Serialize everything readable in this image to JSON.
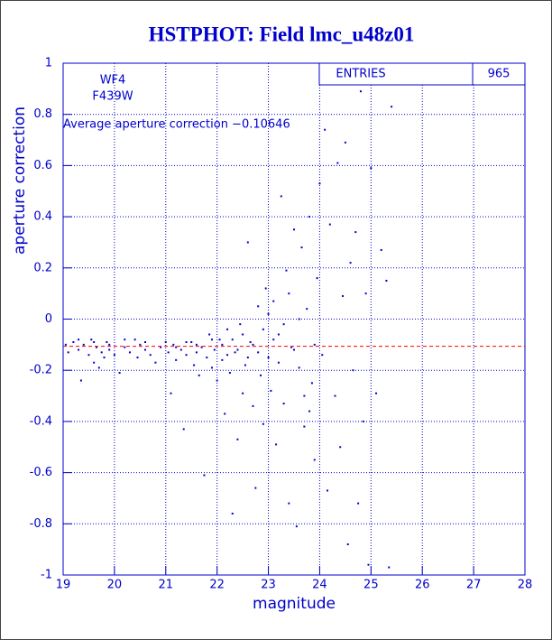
{
  "chart_data": {
    "type": "scatter",
    "title": "HSTPHOT: Field lmc_u48z01",
    "x_label": "magnitude",
    "y_label": "aperture correction",
    "annotations": [
      "WF4",
      "F439W",
      "Average aperture correction −0.10646"
    ],
    "stats_label": "ENTRIES",
    "stats_value": 965,
    "reference_line": -0.10646,
    "reference_color": "#ff0000",
    "color": "#0000cc",
    "grid": true,
    "xlim": [
      19,
      28
    ],
    "xticks": [
      19,
      20,
      21,
      22,
      23,
      24,
      25,
      26,
      27,
      28
    ],
    "ylim": [
      -1,
      1
    ],
    "yticks": [
      -1,
      -0.8,
      -0.6,
      -0.4,
      -0.2,
      0,
      0.2,
      0.4,
      0.6,
      0.8,
      1
    ],
    "x": [
      19.05,
      19.1,
      19.2,
      19.3,
      19.35,
      19.4,
      19.5,
      19.55,
      19.6,
      19.65,
      19.7,
      19.75,
      19.8,
      19.85,
      19.9,
      20.0,
      20.1,
      20.2,
      20.3,
      20.4,
      20.45,
      20.5,
      20.6,
      20.7,
      20.8,
      20.9,
      21.0,
      21.05,
      21.1,
      21.15,
      21.2,
      21.3,
      21.35,
      21.4,
      21.5,
      21.55,
      21.6,
      21.65,
      21.7,
      21.75,
      21.8,
      21.85,
      21.9,
      21.95,
      22.0,
      22.05,
      22.1,
      22.15,
      22.2,
      22.25,
      22.3,
      22.35,
      22.4,
      22.45,
      22.5,
      22.55,
      22.6,
      22.65,
      22.7,
      22.75,
      22.8,
      22.85,
      22.9,
      22.95,
      23.0,
      23.05,
      23.1,
      23.15,
      23.2,
      23.25,
      23.3,
      23.35,
      23.4,
      23.45,
      23.5,
      23.55,
      23.6,
      23.65,
      23.7,
      23.75,
      23.8,
      23.85,
      23.9,
      23.95,
      24.0,
      24.05,
      24.1,
      24.15,
      24.2,
      24.3,
      24.35,
      24.4,
      24.45,
      24.5,
      24.55,
      24.6,
      24.65,
      24.7,
      24.75,
      24.8,
      24.85,
      24.9,
      24.95,
      25.0,
      25.1,
      25.2,
      25.3,
      25.35,
      25.4,
      22.1,
      22.2,
      22.3,
      22.4,
      22.5,
      22.6,
      22.7,
      22.8,
      22.9,
      23.0,
      23.1,
      23.2,
      23.3,
      23.4,
      23.5,
      23.6,
      23.7,
      23.8,
      23.9,
      21.9,
      21.6,
      21.4,
      21.2,
      20.6,
      20.2,
      19.9,
      19.6,
      19.3
    ],
    "y": [
      -0.1,
      -0.13,
      -0.09,
      -0.12,
      -0.24,
      -0.1,
      -0.14,
      -0.08,
      -0.17,
      -0.11,
      -0.19,
      -0.13,
      -0.15,
      -0.09,
      -0.12,
      -0.14,
      -0.21,
      -0.11,
      -0.13,
      -0.08,
      -0.15,
      -0.1,
      -0.12,
      -0.14,
      -0.17,
      -0.11,
      -0.09,
      -0.13,
      -0.29,
      -0.1,
      -0.16,
      -0.12,
      -0.43,
      -0.14,
      -0.09,
      -0.18,
      -0.13,
      -0.22,
      -0.11,
      -0.61,
      -0.15,
      -0.06,
      -0.19,
      -0.12,
      -0.24,
      -0.08,
      -0.16,
      -0.37,
      -0.04,
      -0.21,
      -0.76,
      -0.13,
      -0.47,
      -0.02,
      -0.29,
      -0.18,
      0.3,
      -0.09,
      -0.34,
      -0.66,
      0.05,
      -0.22,
      -0.41,
      0.12,
      -0.15,
      -0.28,
      0.07,
      -0.49,
      -0.06,
      0.48,
      -0.33,
      0.19,
      -0.72,
      -0.11,
      0.35,
      -0.81,
      -0.19,
      0.28,
      -0.42,
      0.04,
      0.4,
      -0.25,
      -0.55,
      0.16,
      0.53,
      -0.14,
      0.74,
      -0.67,
      0.37,
      -0.3,
      0.61,
      -0.5,
      0.09,
      0.69,
      -0.88,
      0.22,
      -0.2,
      0.34,
      -0.72,
      0.89,
      -0.4,
      0.1,
      -0.96,
      0.59,
      -0.29,
      0.27,
      0.15,
      -0.97,
      0.83,
      -0.1,
      -0.14,
      -0.08,
      -0.12,
      -0.06,
      -0.15,
      -0.1,
      -0.13,
      -0.04,
      0.02,
      -0.08,
      -0.17,
      -0.02,
      0.1,
      -0.12,
      0.0,
      -0.3,
      -0.36,
      -0.1,
      -0.08,
      -0.1,
      -0.09,
      -0.11,
      -0.09,
      -0.08,
      -0.1,
      -0.09,
      -0.08
    ]
  }
}
